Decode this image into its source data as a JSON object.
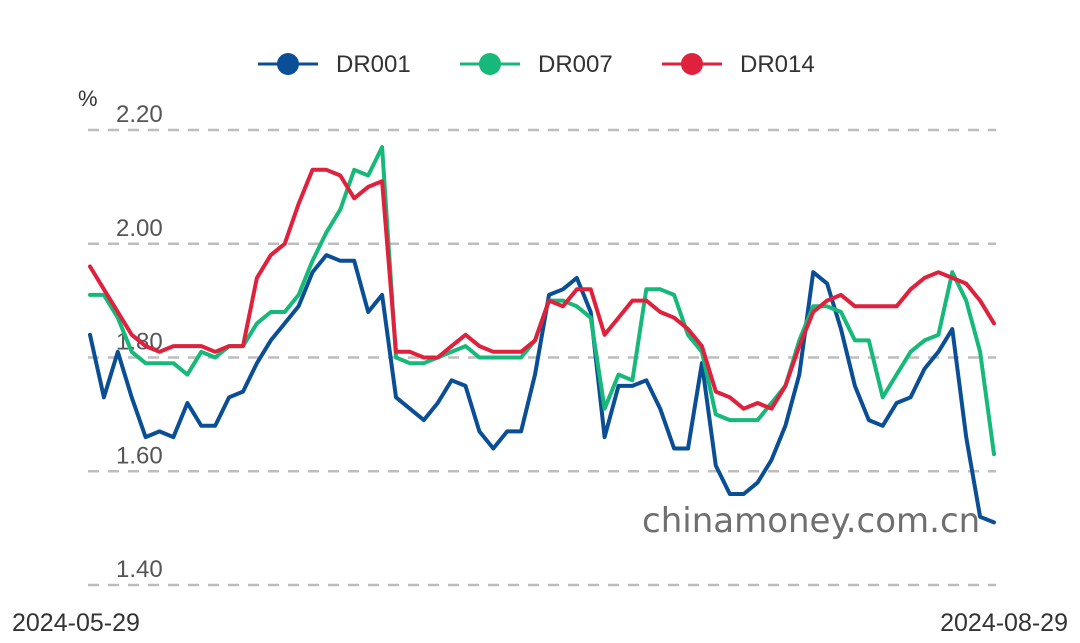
{
  "chart_data": {
    "type": "line",
    "unit_label": "%",
    "start_date": "2024-05-29",
    "end_date": "2024-08-29",
    "watermark": "chinamoney.com.cn",
    "ylim": [
      1.4,
      2.2
    ],
    "yticks": [
      "2.20",
      "2.00",
      "1.80",
      "1.60",
      "1.40"
    ],
    "ytick_values": [
      2.2,
      2.0,
      1.8,
      1.6,
      1.4
    ],
    "grid": true,
    "legend_position": "top-center",
    "series": [
      {
        "name": "DR001",
        "color": "#0a4f96",
        "values": [
          1.84,
          1.73,
          1.81,
          1.73,
          1.66,
          1.67,
          1.66,
          1.72,
          1.68,
          1.68,
          1.73,
          1.74,
          1.79,
          1.83,
          1.86,
          1.89,
          1.95,
          1.98,
          1.97,
          1.97,
          1.88,
          1.91,
          1.73,
          1.71,
          1.69,
          1.72,
          1.76,
          1.75,
          1.67,
          1.64,
          1.67,
          1.67,
          1.77,
          1.91,
          1.92,
          1.94,
          1.88,
          1.66,
          1.75,
          1.75,
          1.76,
          1.71,
          1.64,
          1.64,
          1.79,
          1.61,
          1.56,
          1.56,
          1.58,
          1.62,
          1.68,
          1.77,
          1.95,
          1.93,
          1.85,
          1.75,
          1.69,
          1.68,
          1.72,
          1.73,
          1.78,
          1.81,
          1.85,
          1.66,
          1.52,
          1.51
        ]
      },
      {
        "name": "DR007",
        "color": "#16b979",
        "values": [
          1.91,
          1.91,
          1.87,
          1.81,
          1.79,
          1.79,
          1.79,
          1.77,
          1.81,
          1.8,
          1.82,
          1.82,
          1.86,
          1.88,
          1.88,
          1.91,
          1.97,
          2.02,
          2.06,
          2.13,
          2.12,
          2.17,
          1.8,
          1.79,
          1.79,
          1.8,
          1.81,
          1.82,
          1.8,
          1.8,
          1.8,
          1.8,
          1.83,
          1.9,
          1.9,
          1.89,
          1.87,
          1.71,
          1.77,
          1.76,
          1.92,
          1.92,
          1.91,
          1.84,
          1.81,
          1.7,
          1.69,
          1.69,
          1.69,
          1.72,
          1.75,
          1.83,
          1.89,
          1.89,
          1.88,
          1.83,
          1.83,
          1.73,
          1.77,
          1.81,
          1.83,
          1.84,
          1.95,
          1.9,
          1.81,
          1.63
        ]
      },
      {
        "name": "DR014",
        "color": "#e0213d",
        "values": [
          1.96,
          1.92,
          1.88,
          1.84,
          1.82,
          1.81,
          1.82,
          1.82,
          1.82,
          1.81,
          1.82,
          1.82,
          1.94,
          1.98,
          2.0,
          2.07,
          2.13,
          2.13,
          2.12,
          2.08,
          2.1,
          2.11,
          1.81,
          1.81,
          1.8,
          1.8,
          1.82,
          1.84,
          1.82,
          1.81,
          1.81,
          1.81,
          1.83,
          1.9,
          1.89,
          1.92,
          1.92,
          1.84,
          1.87,
          1.9,
          1.9,
          1.88,
          1.87,
          1.85,
          1.82,
          1.74,
          1.73,
          1.71,
          1.72,
          1.71,
          1.75,
          1.82,
          1.88,
          1.9,
          1.91,
          1.89,
          1.89,
          1.89,
          1.89,
          1.92,
          1.94,
          1.95,
          1.94,
          1.93,
          1.9,
          1.86
        ]
      }
    ]
  }
}
